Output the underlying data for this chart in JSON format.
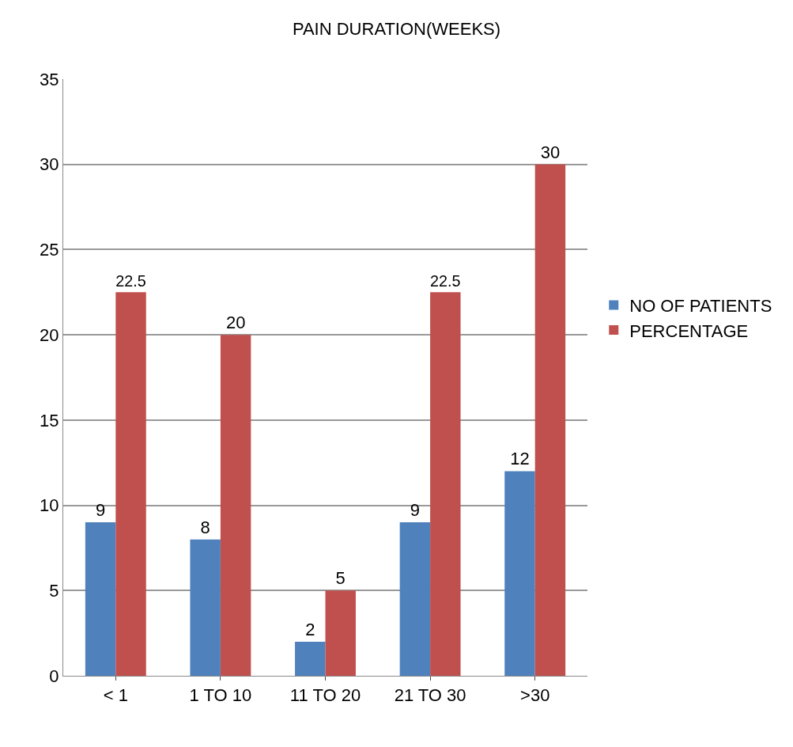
{
  "chart_data": {
    "type": "bar",
    "title": "PAIN DURATION(WEEKS)",
    "categories": [
      "< 1",
      "1 TO 10",
      "11 TO 20",
      "21 TO 30",
      ">30"
    ],
    "series": [
      {
        "name": "NO OF PATIENTS",
        "color": "#4f81bd",
        "values": [
          9,
          8,
          2,
          9,
          12
        ]
      },
      {
        "name": "PERCENTAGE",
        "color": "#c0504d",
        "values": [
          22.5,
          20,
          5,
          22.5,
          30
        ]
      }
    ],
    "ylim": [
      0,
      35
    ],
    "yticks": [
      0,
      5,
      10,
      15,
      20,
      25,
      30,
      35
    ],
    "grid": "y",
    "legend": "right",
    "data_labels": true
  }
}
